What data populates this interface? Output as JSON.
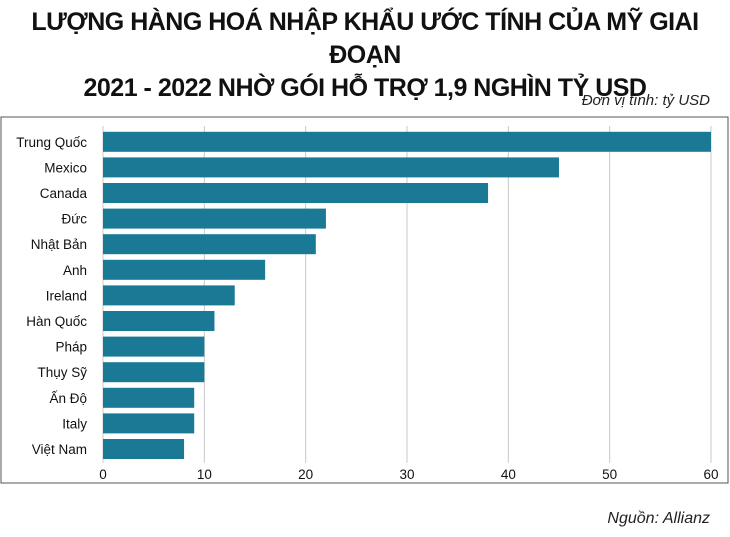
{
  "chart_data": {
    "type": "bar",
    "orientation": "horizontal",
    "title_line1": "LƯỢNG HÀNG HOÁ NHẬP KHẨU ƯỚC TÍNH CỦA MỸ GIAI ĐOẠN",
    "title_line2": "2021 - 2022 NHỜ GÓI HỖ TRỢ 1,9 NGHÌN TỶ USD",
    "unit": "Đơn vị tính: tỷ USD",
    "source": "Nguồn: Allianz",
    "categories": [
      "Trung Quốc",
      "Mexico",
      "Canada",
      "Đức",
      "Nhật Bản",
      "Anh",
      "Ireland",
      "Hàn Quốc",
      "Pháp",
      "Thụy Sỹ",
      "Ấn Độ",
      "Italy",
      "Việt Nam"
    ],
    "values": [
      60,
      45,
      38,
      22,
      21,
      16,
      13,
      11,
      10,
      10,
      9,
      9,
      8
    ],
    "xlim": [
      0,
      60
    ],
    "xticks": [
      "0",
      "10",
      "20",
      "30",
      "40",
      "50",
      "60"
    ],
    "grid": true,
    "bar_color": "#1a7a95",
    "grid_color": "#c8c8c8",
    "frame_color": "#555555"
  }
}
